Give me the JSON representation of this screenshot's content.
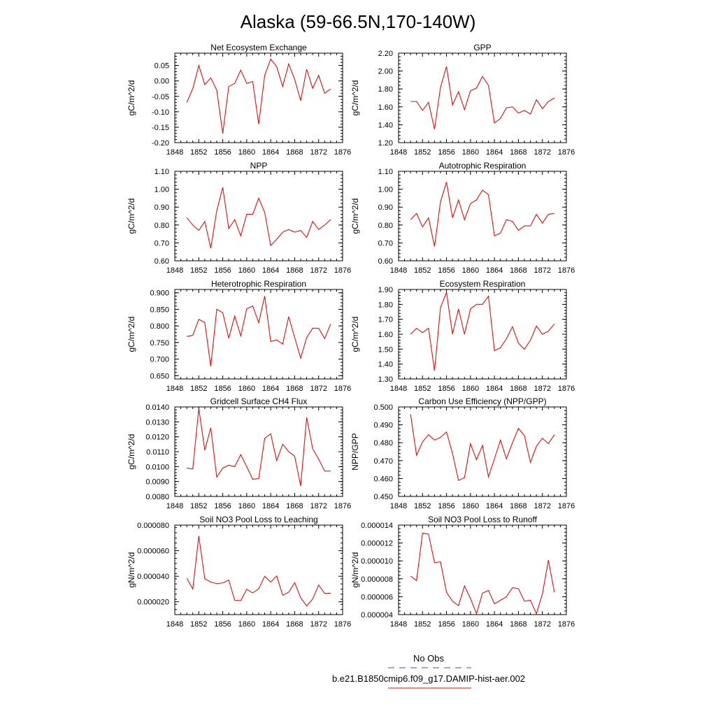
{
  "figure": {
    "title": "Alaska (59-66.5N,170-140W)",
    "legend": [
      {
        "label": "No Obs",
        "color": "#4a4ad8",
        "dash": true
      },
      {
        "label": "b.e21.B1850cmip6.f09_g17.DAMIP-hist-aer.002",
        "color": "#e01010",
        "dash": false
      }
    ]
  },
  "chart_data": [
    {
      "type": "line",
      "title": "Net Ecosystem Exchange",
      "ylabel": "gC/m^2/d",
      "xlim": [
        1848,
        1876
      ],
      "xticks": [
        "1848",
        "1852",
        "1856",
        "1860",
        "1864",
        "1868",
        "1872",
        "1876"
      ],
      "ylim": [
        -0.2,
        0.09
      ],
      "yticks": [
        "0.05",
        "0.00",
        "-0.05",
        "-0.10",
        "-0.15",
        "-0.20"
      ],
      "ytick_values": [
        0.05,
        0.0,
        -0.05,
        -0.1,
        -0.15,
        -0.2
      ],
      "series": [
        {
          "color": "#e01010",
          "x": [
            1850,
            1851,
            1852,
            1853,
            1854,
            1855,
            1856,
            1857,
            1858,
            1859,
            1860,
            1861,
            1862,
            1863,
            1864,
            1865,
            1866,
            1867,
            1868,
            1869,
            1870,
            1871,
            1872,
            1873,
            1874
          ],
          "y": [
            -0.07,
            -0.025,
            0.05,
            -0.012,
            0.01,
            -0.03,
            -0.17,
            -0.018,
            -0.008,
            0.035,
            -0.008,
            -0.002,
            -0.14,
            0.018,
            0.071,
            0.046,
            -0.018,
            0.055,
            0.005,
            -0.064,
            0.038,
            -0.024,
            0.018,
            -0.04,
            -0.026
          ]
        }
      ]
    },
    {
      "type": "line",
      "title": "GPP",
      "ylabel": "gC/m^2/d",
      "xlim": [
        1848,
        1876
      ],
      "xticks": [
        "1848",
        "1852",
        "1856",
        "1860",
        "1864",
        "1868",
        "1872",
        "1876"
      ],
      "ylim": [
        1.2,
        2.2
      ],
      "yticks": [
        "2.20",
        "2.00",
        "1.80",
        "1.60",
        "1.40",
        "1.20"
      ],
      "ytick_values": [
        2.2,
        2.0,
        1.8,
        1.6,
        1.4,
        1.2
      ],
      "series": [
        {
          "color": "#e01010",
          "x": [
            1850,
            1851,
            1852,
            1853,
            1854,
            1855,
            1856,
            1857,
            1858,
            1859,
            1860,
            1861,
            1862,
            1863,
            1864,
            1865,
            1866,
            1867,
            1868,
            1869,
            1870,
            1871,
            1872,
            1873,
            1874
          ],
          "y": [
            1.66,
            1.66,
            1.56,
            1.65,
            1.35,
            1.82,
            2.05,
            1.62,
            1.77,
            1.57,
            1.78,
            1.81,
            1.94,
            1.84,
            1.42,
            1.47,
            1.59,
            1.6,
            1.53,
            1.56,
            1.52,
            1.68,
            1.58,
            1.66,
            1.7
          ]
        }
      ]
    },
    {
      "type": "line",
      "title": "NPP",
      "ylabel": "gC/m^2/d",
      "xlim": [
        1848,
        1876
      ],
      "xticks": [
        "1848",
        "1852",
        "1856",
        "1860",
        "1864",
        "1868",
        "1872",
        "1876"
      ],
      "ylim": [
        0.6,
        1.1
      ],
      "yticks": [
        "1.10",
        "1.00",
        "0.90",
        "0.80",
        "0.70",
        "0.60"
      ],
      "ytick_values": [
        1.1,
        1.0,
        0.9,
        0.8,
        0.7,
        0.6
      ],
      "series": [
        {
          "color": "#e01010",
          "x": [
            1850,
            1851,
            1852,
            1853,
            1854,
            1855,
            1856,
            1857,
            1858,
            1859,
            1860,
            1861,
            1862,
            1863,
            1864,
            1865,
            1866,
            1867,
            1868,
            1869,
            1870,
            1871,
            1872,
            1873,
            1874
          ],
          "y": [
            0.84,
            0.8,
            0.77,
            0.82,
            0.67,
            0.88,
            1.01,
            0.78,
            0.83,
            0.74,
            0.86,
            0.86,
            0.95,
            0.87,
            0.685,
            0.72,
            0.76,
            0.775,
            0.76,
            0.77,
            0.73,
            0.82,
            0.775,
            0.8,
            0.83
          ]
        }
      ]
    },
    {
      "type": "line",
      "title": "Autotrophic Respiration",
      "ylabel": "gC/m^2/d",
      "xlim": [
        1848,
        1876
      ],
      "xticks": [
        "1848",
        "1852",
        "1856",
        "1860",
        "1864",
        "1868",
        "1872",
        "1876"
      ],
      "ylim": [
        0.6,
        1.1
      ],
      "yticks": [
        "1.10",
        "1.00",
        "0.90",
        "0.80",
        "0.70",
        "0.60"
      ],
      "ytick_values": [
        1.1,
        1.0,
        0.9,
        0.8,
        0.7,
        0.6
      ],
      "series": [
        {
          "color": "#e01010",
          "x": [
            1850,
            1851,
            1852,
            1853,
            1854,
            1855,
            1856,
            1857,
            1858,
            1859,
            1860,
            1861,
            1862,
            1863,
            1864,
            1865,
            1866,
            1867,
            1868,
            1869,
            1870,
            1871,
            1872,
            1873,
            1874
          ],
          "y": [
            0.83,
            0.865,
            0.79,
            0.84,
            0.68,
            0.93,
            1.04,
            0.84,
            0.94,
            0.83,
            0.92,
            0.94,
            0.995,
            0.97,
            0.74,
            0.755,
            0.83,
            0.82,
            0.77,
            0.795,
            0.795,
            0.86,
            0.81,
            0.86,
            0.865
          ]
        }
      ]
    },
    {
      "type": "line",
      "title": "Heterotrophic Respiration",
      "ylabel": "gC/m^2/d",
      "xlim": [
        1848,
        1876
      ],
      "xticks": [
        "1848",
        "1852",
        "1856",
        "1860",
        "1864",
        "1868",
        "1872",
        "1876"
      ],
      "ylim": [
        0.64,
        0.91
      ],
      "yticks": [
        "0.900",
        "0.850",
        "0.800",
        "0.750",
        "0.700",
        "0.650"
      ],
      "ytick_values": [
        0.9,
        0.85,
        0.8,
        0.75,
        0.7,
        0.65
      ],
      "series": [
        {
          "color": "#e01010",
          "x": [
            1850,
            1851,
            1852,
            1853,
            1854,
            1855,
            1856,
            1857,
            1858,
            1859,
            1860,
            1861,
            1862,
            1863,
            1864,
            1865,
            1866,
            1867,
            1868,
            1869,
            1870,
            1871,
            1872,
            1873,
            1874
          ],
          "y": [
            0.768,
            0.772,
            0.82,
            0.81,
            0.678,
            0.85,
            0.84,
            0.763,
            0.83,
            0.77,
            0.852,
            0.86,
            0.81,
            0.89,
            0.753,
            0.758,
            0.745,
            0.828,
            0.765,
            0.703,
            0.765,
            0.793,
            0.793,
            0.762,
            0.806
          ]
        }
      ]
    },
    {
      "type": "line",
      "title": "Ecosystem Respiration",
      "ylabel": "gC/m^2/d",
      "xlim": [
        1848,
        1876
      ],
      "xticks": [
        "1848",
        "1852",
        "1856",
        "1860",
        "1864",
        "1868",
        "1872",
        "1876"
      ],
      "ylim": [
        1.3,
        1.9
      ],
      "yticks": [
        "1.90",
        "1.80",
        "1.70",
        "1.60",
        "1.50",
        "1.40",
        "1.30"
      ],
      "ytick_values": [
        1.9,
        1.8,
        1.7,
        1.6,
        1.5,
        1.4,
        1.3
      ],
      "series": [
        {
          "color": "#e01010",
          "x": [
            1850,
            1851,
            1852,
            1853,
            1854,
            1855,
            1856,
            1857,
            1858,
            1859,
            1860,
            1861,
            1862,
            1863,
            1864,
            1865,
            1866,
            1867,
            1868,
            1869,
            1870,
            1871,
            1872,
            1873,
            1874
          ],
          "y": [
            1.6,
            1.64,
            1.61,
            1.64,
            1.355,
            1.78,
            1.88,
            1.6,
            1.77,
            1.6,
            1.77,
            1.8,
            1.8,
            1.855,
            1.49,
            1.51,
            1.57,
            1.65,
            1.54,
            1.5,
            1.56,
            1.655,
            1.6,
            1.62,
            1.67
          ]
        }
      ]
    },
    {
      "type": "line",
      "title": "Gridcell Surface CH4 Flux",
      "ylabel": "gC/m^2/d",
      "xlim": [
        1848,
        1876
      ],
      "xticks": [
        "1848",
        "1852",
        "1856",
        "1860",
        "1864",
        "1868",
        "1872",
        "1876"
      ],
      "ylim": [
        0.008,
        0.014
      ],
      "yticks": [
        "0.0140",
        "0.0130",
        "0.0120",
        "0.0110",
        "0.0100",
        "0.0090",
        "0.0080"
      ],
      "ytick_values": [
        0.014,
        0.013,
        0.012,
        0.011,
        0.01,
        0.009,
        0.008
      ],
      "series": [
        {
          "color": "#e01010",
          "x": [
            1850,
            1851,
            1852,
            1853,
            1854,
            1855,
            1856,
            1857,
            1858,
            1859,
            1860,
            1861,
            1862,
            1863,
            1864,
            1865,
            1866,
            1867,
            1868,
            1869,
            1870,
            1871,
            1872,
            1873,
            1874
          ],
          "y": [
            0.0099,
            0.00985,
            0.0139,
            0.0111,
            0.0126,
            0.0093,
            0.0099,
            0.0101,
            0.01,
            0.0108,
            0.01,
            0.00915,
            0.0092,
            0.0119,
            0.0122,
            0.0104,
            0.0115,
            0.011,
            0.0107,
            0.0087,
            0.0133,
            0.0112,
            0.0105,
            0.0097,
            0.0097
          ]
        }
      ]
    },
    {
      "type": "line",
      "title": "Carbon Use Efficiency (NPP/GPP)",
      "ylabel": "NPP/GPP",
      "xlim": [
        1848,
        1876
      ],
      "xticks": [
        "1848",
        "1852",
        "1856",
        "1860",
        "1864",
        "1868",
        "1872",
        "1876"
      ],
      "ylim": [
        0.45,
        0.5
      ],
      "yticks": [
        "0.500",
        "0.490",
        "0.480",
        "0.470",
        "0.460",
        "0.450"
      ],
      "ytick_values": [
        0.5,
        0.49,
        0.48,
        0.47,
        0.46,
        0.45
      ],
      "series": [
        {
          "color": "#e01010",
          "x": [
            1850,
            1851,
            1852,
            1853,
            1854,
            1855,
            1856,
            1857,
            1858,
            1859,
            1860,
            1861,
            1862,
            1863,
            1864,
            1865,
            1866,
            1867,
            1868,
            1869,
            1870,
            1871,
            1872,
            1873,
            1874
          ],
          "y": [
            0.496,
            0.473,
            0.4805,
            0.4845,
            0.4815,
            0.483,
            0.486,
            0.474,
            0.459,
            0.4605,
            0.4795,
            0.4705,
            0.4785,
            0.461,
            0.471,
            0.4815,
            0.471,
            0.48,
            0.488,
            0.484,
            0.469,
            0.478,
            0.4825,
            0.4795,
            0.4845
          ]
        }
      ]
    },
    {
      "type": "line",
      "title": "Soil NO3 Pool Loss to Leaching",
      "ylabel": "gN/m^2/d",
      "xlim": [
        1848,
        1876
      ],
      "xticks": [
        "1848",
        "1852",
        "1856",
        "1860",
        "1864",
        "1868",
        "1872",
        "1876"
      ],
      "ylim": [
        1e-05,
        8e-05
      ],
      "yticks": [
        "0.000080",
        "0.000060",
        "0.000040",
        "0.000020"
      ],
      "ytick_values": [
        8e-05,
        6e-05,
        4e-05,
        2e-05
      ],
      "series": [
        {
          "color": "#e01010",
          "x": [
            1850,
            1851,
            1852,
            1853,
            1854,
            1855,
            1856,
            1857,
            1858,
            1859,
            1860,
            1861,
            1862,
            1863,
            1864,
            1865,
            1866,
            1867,
            1868,
            1869,
            1870,
            1871,
            1872,
            1873,
            1874
          ],
          "y": [
            3.85e-05,
            3e-05,
            7.15e-05,
            3.8e-05,
            3.55e-05,
            3.42e-05,
            3.48e-05,
            3.7e-05,
            2.12e-05,
            2.1e-05,
            2.98e-05,
            2.7e-05,
            3.02e-05,
            4e-05,
            3.55e-05,
            4.02e-05,
            2.52e-05,
            2.75e-05,
            3.5e-05,
            2.32e-05,
            1.68e-05,
            2.22e-05,
            3.32e-05,
            2.65e-05,
            2.68e-05
          ]
        }
      ]
    },
    {
      "type": "line",
      "title": "Soil NO3 Pool Loss to Runoff",
      "ylabel": "gN/m^2/d",
      "xlim": [
        1848,
        1876
      ],
      "xticks": [
        "1848",
        "1852",
        "1856",
        "1860",
        "1864",
        "1868",
        "1872",
        "1876"
      ],
      "ylim": [
        4e-06,
        1.4e-05
      ],
      "yticks": [
        "0.000014",
        "0.000012",
        "0.000010",
        "0.000008",
        "0.000006",
        "0.000004"
      ],
      "ytick_values": [
        1.4e-05,
        1.2e-05,
        1e-05,
        8e-06,
        6e-06,
        4e-06
      ],
      "series": [
        {
          "color": "#e01010",
          "x": [
            1850,
            1851,
            1852,
            1853,
            1854,
            1855,
            1856,
            1857,
            1858,
            1859,
            1860,
            1861,
            1862,
            1863,
            1864,
            1865,
            1866,
            1867,
            1868,
            1869,
            1870,
            1871,
            1872,
            1873,
            1874
          ],
          "y": [
            8.3e-06,
            7.8e-06,
            1.31e-05,
            1.3e-05,
            9.8e-06,
            9.9e-06,
            6.5e-06,
            5.5e-06,
            5e-06,
            7.2e-06,
            5.8e-06,
            4.1e-06,
            6.4e-06,
            6.7e-06,
            5.2e-06,
            5.6e-06,
            6e-06,
            7e-06,
            6.9e-06,
            5.5e-06,
            5.6e-06,
            4.1e-06,
            6.3e-06,
            1.01e-05,
            6.5e-06
          ]
        }
      ]
    }
  ]
}
